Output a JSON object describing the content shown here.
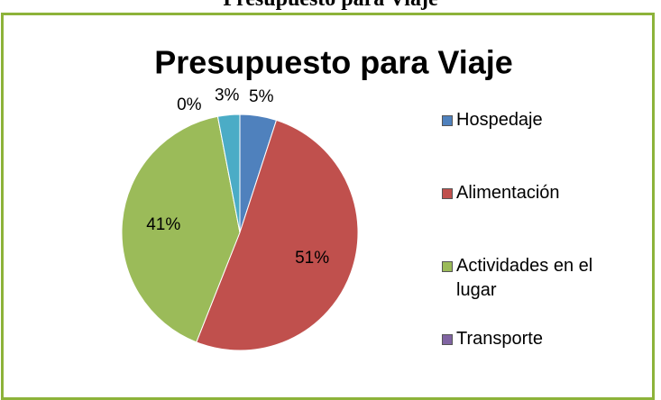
{
  "header": {
    "title": "Presupuesto para Viaje"
  },
  "chart_data": {
    "type": "pie",
    "title": "Presupuesto para Viaje",
    "categories": [
      "Hospedaje",
      "Alimentación",
      "Actividades en el lugar",
      "Transporte",
      null
    ],
    "values": [
      5,
      51,
      41,
      0,
      3
    ],
    "value_labels": [
      "5%",
      "51%",
      "41%",
      "0%",
      "3%"
    ],
    "colors": [
      "#4f81bd",
      "#c0504d",
      "#9bbb59",
      "#8064a2",
      "#4bacc6"
    ],
    "legend": "right"
  }
}
